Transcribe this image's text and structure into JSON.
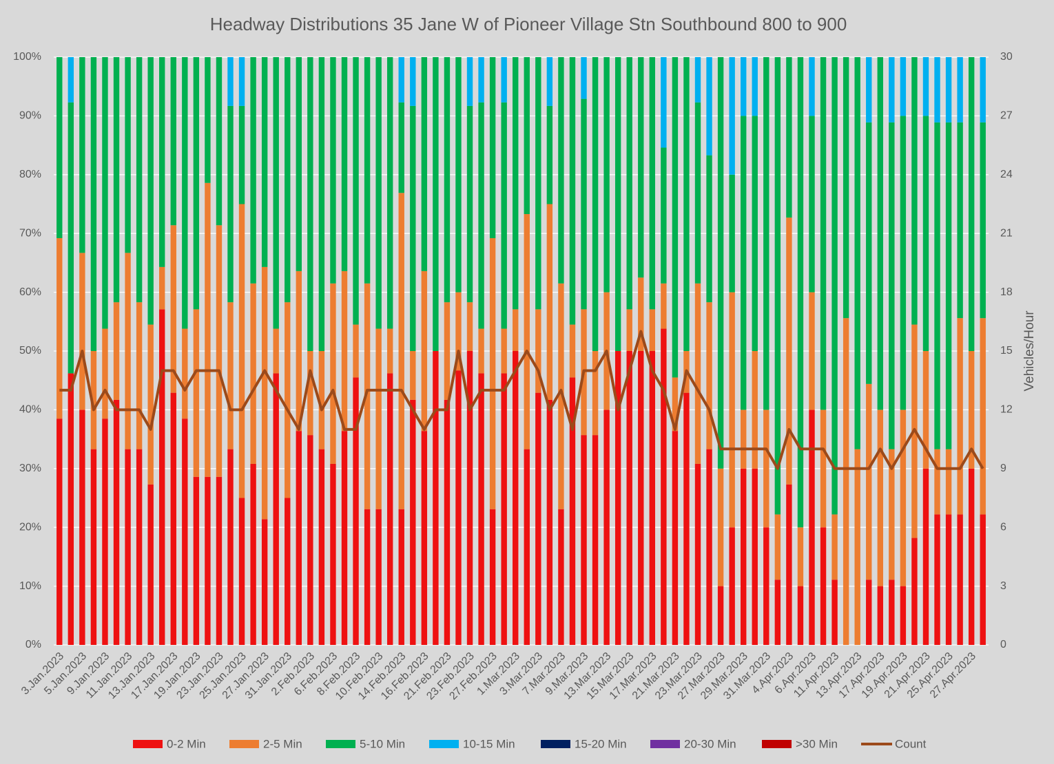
{
  "chart_data": {
    "type": "bar",
    "stacked": true,
    "title": "Headway Distributions 35 Jane  W of Pioneer Village Stn Southbound 800 to 900",
    "y2_label": "Vehicles/Hour",
    "categories": [
      "3.Jan.2023",
      null,
      "5.Jan.2023",
      null,
      "9.Jan.2023",
      null,
      "11.Jan.2023",
      null,
      "13.Jan.2023",
      null,
      "17.Jan.2023",
      null,
      "19.Jan.2023",
      null,
      "23.Jan.2023",
      null,
      "25.Jan.2023",
      null,
      "27.Jan.2023",
      null,
      "31.Jan.2023",
      null,
      "2.Feb.2023",
      null,
      "6.Feb.2023",
      null,
      "8.Feb.2023",
      null,
      "10.Feb.2023",
      null,
      "14.Feb.2023",
      null,
      "16.Feb.2023",
      null,
      "21.Feb.2023",
      null,
      "23.Feb.2023",
      null,
      "27.Feb.2023",
      null,
      "1.Mar.2023",
      null,
      "3.Mar.2023",
      null,
      "7.Mar.2023",
      null,
      "9.Mar.2023",
      null,
      "13.Mar.2023",
      null,
      "15.Mar.2023",
      null,
      "17.Mar.2023",
      null,
      "21.Mar.2023",
      null,
      "23.Mar.2023",
      null,
      "27.Mar.2023",
      null,
      "29.Mar.2023",
      null,
      "31.Mar.2023",
      null,
      "4.Apr.2023",
      null,
      "6.Apr.2023",
      null,
      "11.Apr.2023",
      null,
      "13.Apr.2023",
      null,
      "17.Apr.2023",
      null,
      "19.Apr.2023",
      null,
      "21.Apr.2023",
      null,
      "25.Apr.2023",
      null,
      "27.Apr.2023",
      null
    ],
    "series": [
      {
        "name": "0-2 Min",
        "color": "#ee1111",
        "values": [
          38.5,
          46.2,
          40,
          33.3,
          38.5,
          41.7,
          33.3,
          33.3,
          27.3,
          57.1,
          42.9,
          38.5,
          28.6,
          28.6,
          28.6,
          33.3,
          25,
          30.8,
          21.4,
          46.2,
          25,
          36.4,
          35.7,
          33.3,
          30.8,
          36.4,
          45.5,
          23.1,
          23.1,
          46.2,
          23.1,
          41.7,
          36.4,
          50,
          41.7,
          46.7,
          50,
          46.2,
          23.1,
          46.2,
          50,
          33.3,
          42.9,
          41.7,
          23.1,
          45.5,
          35.7,
          35.7,
          40,
          50,
          50,
          50,
          50,
          53.8,
          36.4,
          42.9,
          30.8,
          33.3,
          10,
          20,
          30,
          30,
          20,
          11.1,
          27.3,
          10,
          40,
          20,
          11.1,
          0,
          0,
          11.1,
          10,
          11.1,
          10,
          18.2,
          30,
          22.2,
          22.2,
          22.2,
          30,
          22.2
        ]
      },
      {
        "name": "2-5 Min",
        "color": "#ed7d31",
        "values": [
          30.7,
          0,
          26.7,
          16.7,
          15.3,
          16.6,
          33.4,
          25,
          27.2,
          7.2,
          28.5,
          15.3,
          28.5,
          50,
          42.8,
          25,
          50,
          30.7,
          42.9,
          7.6,
          33.3,
          27.2,
          14.3,
          16.7,
          30.7,
          27.2,
          9,
          38.4,
          30.7,
          7.6,
          53.8,
          8.3,
          27.2,
          0,
          16.6,
          13.3,
          8.3,
          7.6,
          46.1,
          7.6,
          7.1,
          40,
          14.2,
          33.3,
          38.4,
          9,
          21.4,
          14.3,
          20,
          0,
          7.1,
          12.5,
          7.1,
          7.7,
          9.1,
          7.1,
          30.7,
          25,
          20,
          40,
          10,
          20,
          20,
          11.1,
          45.4,
          10,
          20,
          20,
          11.1,
          55.6,
          33.3,
          33.3,
          30,
          22.2,
          30,
          36.3,
          20,
          11.1,
          11.1,
          33.4,
          20,
          33.4
        ]
      },
      {
        "name": "5-10 Min",
        "color": "#00b050",
        "values": [
          30.8,
          46.1,
          33.3,
          50,
          46.2,
          41.7,
          33.3,
          41.7,
          45.5,
          35.7,
          28.6,
          46.2,
          42.9,
          21.4,
          28.6,
          33.4,
          16.7,
          38.5,
          35.7,
          46.2,
          41.7,
          36.4,
          50,
          50,
          38.5,
          36.4,
          45.5,
          38.5,
          46.2,
          46.2,
          15.4,
          41.7,
          36.4,
          50,
          41.7,
          40,
          33.4,
          38.5,
          30.8,
          38.5,
          42.9,
          26.7,
          42.9,
          16.7,
          38.5,
          45.5,
          35.8,
          50,
          40,
          50,
          42.9,
          37.5,
          42.9,
          23.1,
          54.5,
          50,
          30.8,
          25,
          70,
          20,
          50,
          40,
          60,
          77.8,
          27.3,
          80,
          30,
          60,
          77.8,
          44.4,
          66.7,
          44.5,
          60,
          55.6,
          50,
          45.5,
          40,
          55.6,
          55.6,
          33.3,
          50,
          33.3
        ]
      },
      {
        "name": "10-15 Min",
        "color": "#00b0f0",
        "values": [
          0,
          7.7,
          0,
          0,
          0,
          0,
          0,
          0,
          0,
          0,
          0,
          0,
          0,
          0,
          0,
          8.3,
          8.3,
          0,
          0,
          0,
          0,
          0,
          0,
          0,
          0,
          0,
          0,
          0,
          0,
          0,
          7.7,
          8.3,
          0,
          0,
          0,
          0,
          8.3,
          7.7,
          0,
          7.7,
          0,
          0,
          0,
          8.3,
          0,
          0,
          7.1,
          0,
          0,
          0,
          0,
          0,
          0,
          15.4,
          0,
          0,
          7.7,
          16.7,
          0,
          20,
          10,
          10,
          0,
          0,
          0,
          0,
          10,
          0,
          0,
          0,
          0,
          11.1,
          0,
          11.1,
          10,
          0,
          10,
          11.1,
          11.1,
          11.1,
          0,
          11.1
        ]
      },
      {
        "name": "15-20 Min",
        "color": "#002060",
        "values": [
          0,
          0,
          0,
          0,
          0,
          0,
          0,
          0,
          0,
          0,
          0,
          0,
          0,
          0,
          0,
          0,
          0,
          0,
          0,
          0,
          0,
          0,
          0,
          0,
          0,
          0,
          0,
          0,
          0,
          0,
          0,
          0,
          0,
          0,
          0,
          0,
          0,
          0,
          0,
          0,
          0,
          0,
          0,
          0,
          0,
          0,
          0,
          0,
          0,
          0,
          0,
          0,
          0,
          0,
          0,
          0,
          0,
          0,
          0,
          0,
          0,
          0,
          0,
          0,
          0,
          0,
          0,
          0,
          0,
          0,
          0,
          0,
          0,
          0,
          0,
          0,
          0,
          0,
          0,
          0,
          0,
          0
        ]
      },
      {
        "name": "20-30 Min",
        "color": "#7030a0",
        "values": [
          0,
          0,
          0,
          0,
          0,
          0,
          0,
          0,
          0,
          0,
          0,
          0,
          0,
          0,
          0,
          0,
          0,
          0,
          0,
          0,
          0,
          0,
          0,
          0,
          0,
          0,
          0,
          0,
          0,
          0,
          0,
          0,
          0,
          0,
          0,
          0,
          0,
          0,
          0,
          0,
          0,
          0,
          0,
          0,
          0,
          0,
          0,
          0,
          0,
          0,
          0,
          0,
          0,
          0,
          0,
          0,
          0,
          0,
          0,
          0,
          0,
          0,
          0,
          0,
          0,
          0,
          0,
          0,
          0,
          0,
          0,
          0,
          0,
          0,
          0,
          0,
          0,
          0,
          0,
          0,
          0,
          0
        ]
      },
      {
        "name": ">30 Min",
        "color": "#c00000",
        "values": [
          0,
          0,
          0,
          0,
          0,
          0,
          0,
          0,
          0,
          0,
          0,
          0,
          0,
          0,
          0,
          0,
          0,
          0,
          0,
          0,
          0,
          0,
          0,
          0,
          0,
          0,
          0,
          0,
          0,
          0,
          0,
          0,
          0,
          0,
          0,
          0,
          0,
          0,
          0,
          0,
          0,
          0,
          0,
          0,
          0,
          0,
          0,
          0,
          0,
          0,
          0,
          0,
          0,
          0,
          0,
          0,
          0,
          0,
          0,
          0,
          0,
          0,
          0,
          0,
          0,
          0,
          0,
          0,
          0,
          0,
          0,
          0,
          0,
          0,
          0,
          0,
          0,
          0,
          0,
          0,
          0,
          0
        ]
      },
      {
        "name": "Count",
        "color": "#9c4a1a",
        "type": "line",
        "axis": "y2",
        "values": [
          13,
          13,
          15,
          12,
          13,
          12,
          12,
          12,
          11,
          14,
          14,
          13,
          14,
          14,
          14,
          12,
          12,
          13,
          14,
          13,
          12,
          11,
          14,
          12,
          13,
          11,
          11,
          13,
          13,
          13,
          13,
          12,
          11,
          12,
          12,
          15,
          12,
          13,
          13,
          13,
          14,
          15,
          14,
          12,
          13,
          11,
          14,
          14,
          15,
          12,
          14,
          16,
          14,
          13,
          11,
          14,
          13,
          12,
          10,
          10,
          10,
          10,
          10,
          9,
          11,
          10,
          10,
          10,
          9,
          9,
          9,
          9,
          10,
          9,
          10,
          11,
          10,
          9,
          9,
          9,
          10,
          9
        ]
      }
    ],
    "ylim": [
      0,
      100
    ],
    "yticks": [
      {
        "value": 0,
        "label": "0%"
      },
      {
        "value": 10,
        "label": "10%"
      },
      {
        "value": 20,
        "label": "20%"
      },
      {
        "value": 30,
        "label": "30%"
      },
      {
        "value": 40,
        "label": "40%"
      },
      {
        "value": 50,
        "label": "50%"
      },
      {
        "value": 60,
        "label": "60%"
      },
      {
        "value": 70,
        "label": "70%"
      },
      {
        "value": 80,
        "label": "80%"
      },
      {
        "value": 90,
        "label": "90%"
      },
      {
        "value": 100,
        "label": "100%"
      }
    ],
    "y2lim": [
      0,
      30
    ],
    "y2ticks": [
      0,
      3,
      6,
      9,
      12,
      15,
      18,
      21,
      24,
      27,
      30
    ],
    "grid": true,
    "legend": "bottom"
  }
}
